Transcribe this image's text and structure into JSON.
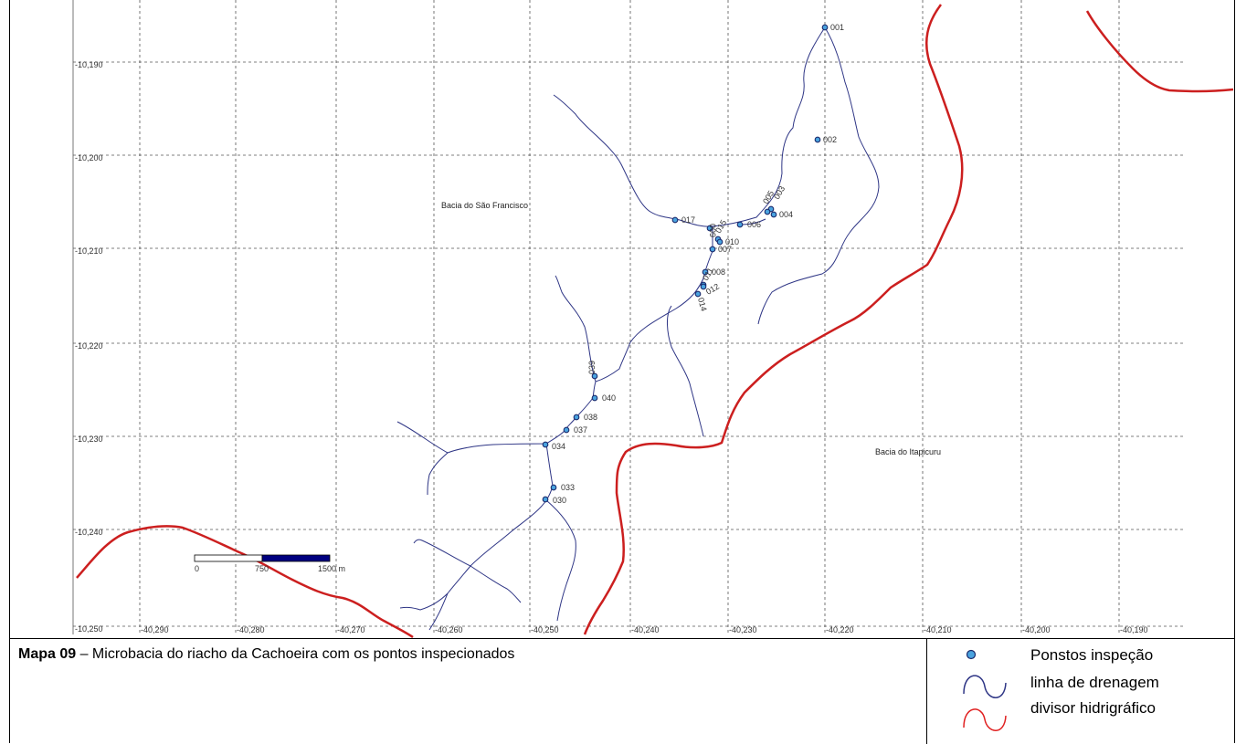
{
  "caption": {
    "bold": "Mapa 09",
    "text": " – Microbacia do riacho da Cachoeira com os pontos inspecionados"
  },
  "legend": {
    "points": "Ponstos inspeção",
    "drainage": "linha de drenagem",
    "divide": "divisor hidrigráfico"
  },
  "axes": {
    "y_labels": [
      "-10,190",
      "-10,200",
      "-10,210",
      "-10,220",
      "-10,230",
      "-10,240",
      "-10,250"
    ],
    "x_labels": [
      "-40,290",
      "-40,280",
      "-40,270",
      "-40,260",
      "-40,250",
      "-40,240",
      "-40,230",
      "-40,220",
      "-40,210",
      "-40,200",
      "-40,190"
    ]
  },
  "basins": {
    "sao_francisco": "Bacia do São Francisco",
    "itapicuru": "Bacia do Itapicuru"
  },
  "scale_bar": {
    "labels": [
      "0",
      "750",
      "1500 m"
    ]
  },
  "points": [
    {
      "id": "001"
    },
    {
      "id": "002"
    },
    {
      "id": "003"
    },
    {
      "id": "004"
    },
    {
      "id": "005"
    },
    {
      "id": "006"
    },
    {
      "id": "017"
    },
    {
      "id": "009"
    },
    {
      "id": "015"
    },
    {
      "id": "010"
    },
    {
      "id": "007"
    },
    {
      "id": "008"
    },
    {
      "id": "011"
    },
    {
      "id": "012"
    },
    {
      "id": "014"
    },
    {
      "id": "039"
    },
    {
      "id": "040"
    },
    {
      "id": "038"
    },
    {
      "id": "037"
    },
    {
      "id": "034"
    },
    {
      "id": "033"
    },
    {
      "id": "030"
    }
  ],
  "colors": {
    "point_fill": "#4aa3df",
    "point_stroke": "#1a2a6c",
    "drainage": "#2e3585",
    "divide": "#cc1f1f",
    "grid": "#555555",
    "scale_dark": "#000080"
  }
}
